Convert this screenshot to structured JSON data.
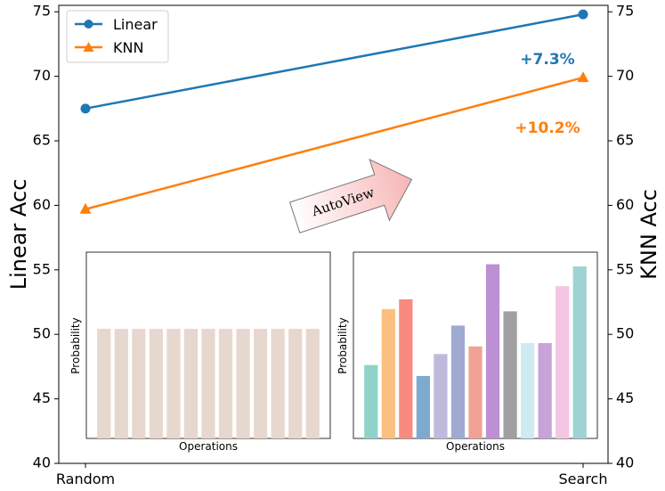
{
  "chart_data": {
    "type": "line",
    "categories": [
      "Random",
      "Search"
    ],
    "series": [
      {
        "name": "Linear",
        "values": [
          67.5,
          74.8
        ],
        "color": "#1f77b4",
        "marker": "circle",
        "axis": "left"
      },
      {
        "name": "KNN",
        "values": [
          59.7,
          69.9
        ],
        "color": "#ff7f0e",
        "marker": "triangle",
        "axis": "right"
      }
    ],
    "ylabel_left": "Linear Acc",
    "ylabel_right": "KNN Acc",
    "ylim": [
      40,
      75.5
    ],
    "yticks": [
      40,
      45,
      50,
      55,
      60,
      65,
      70,
      75
    ],
    "legend_position": "top-left",
    "annotations": [
      {
        "text": "+7.3%",
        "color": "#1f77b4"
      },
      {
        "text": "+10.2%",
        "color": "#ff7f0e"
      }
    ],
    "arrow_label": "AutoView",
    "insets": [
      {
        "name": "random",
        "type": "bar",
        "xlabel": "Operations",
        "ylabel": "Probability",
        "values": [
          1,
          1,
          1,
          1,
          1,
          1,
          1,
          1,
          1,
          1,
          1,
          1,
          1
        ],
        "colors": [
          "#e6d8ce",
          "#e6d8ce",
          "#e6d8ce",
          "#e6d8ce",
          "#e6d8ce",
          "#e6d8ce",
          "#e6d8ce",
          "#e6d8ce",
          "#e6d8ce",
          "#e6d8ce",
          "#e6d8ce",
          "#e6d8ce",
          "#e6d8ce"
        ],
        "ymax": 1.7
      },
      {
        "name": "search",
        "type": "bar",
        "xlabel": "Operations",
        "ylabel": "Probability",
        "values": [
          0.67,
          1.18,
          1.27,
          0.57,
          0.77,
          1.03,
          0.84,
          1.59,
          1.16,
          0.87,
          0.87,
          1.39,
          1.57
        ],
        "colors": [
          "#8fd3c8",
          "#fdbf7f",
          "#f88a7f",
          "#7faacf",
          "#bfbadb",
          "#a0a9d0",
          "#f0a395",
          "#bd8fd3",
          "#a0a0a0",
          "#cfeaf0",
          "#c7a3d9",
          "#f5c6e4",
          "#9fd3d1"
        ],
        "ymax": 1.7
      }
    ]
  }
}
